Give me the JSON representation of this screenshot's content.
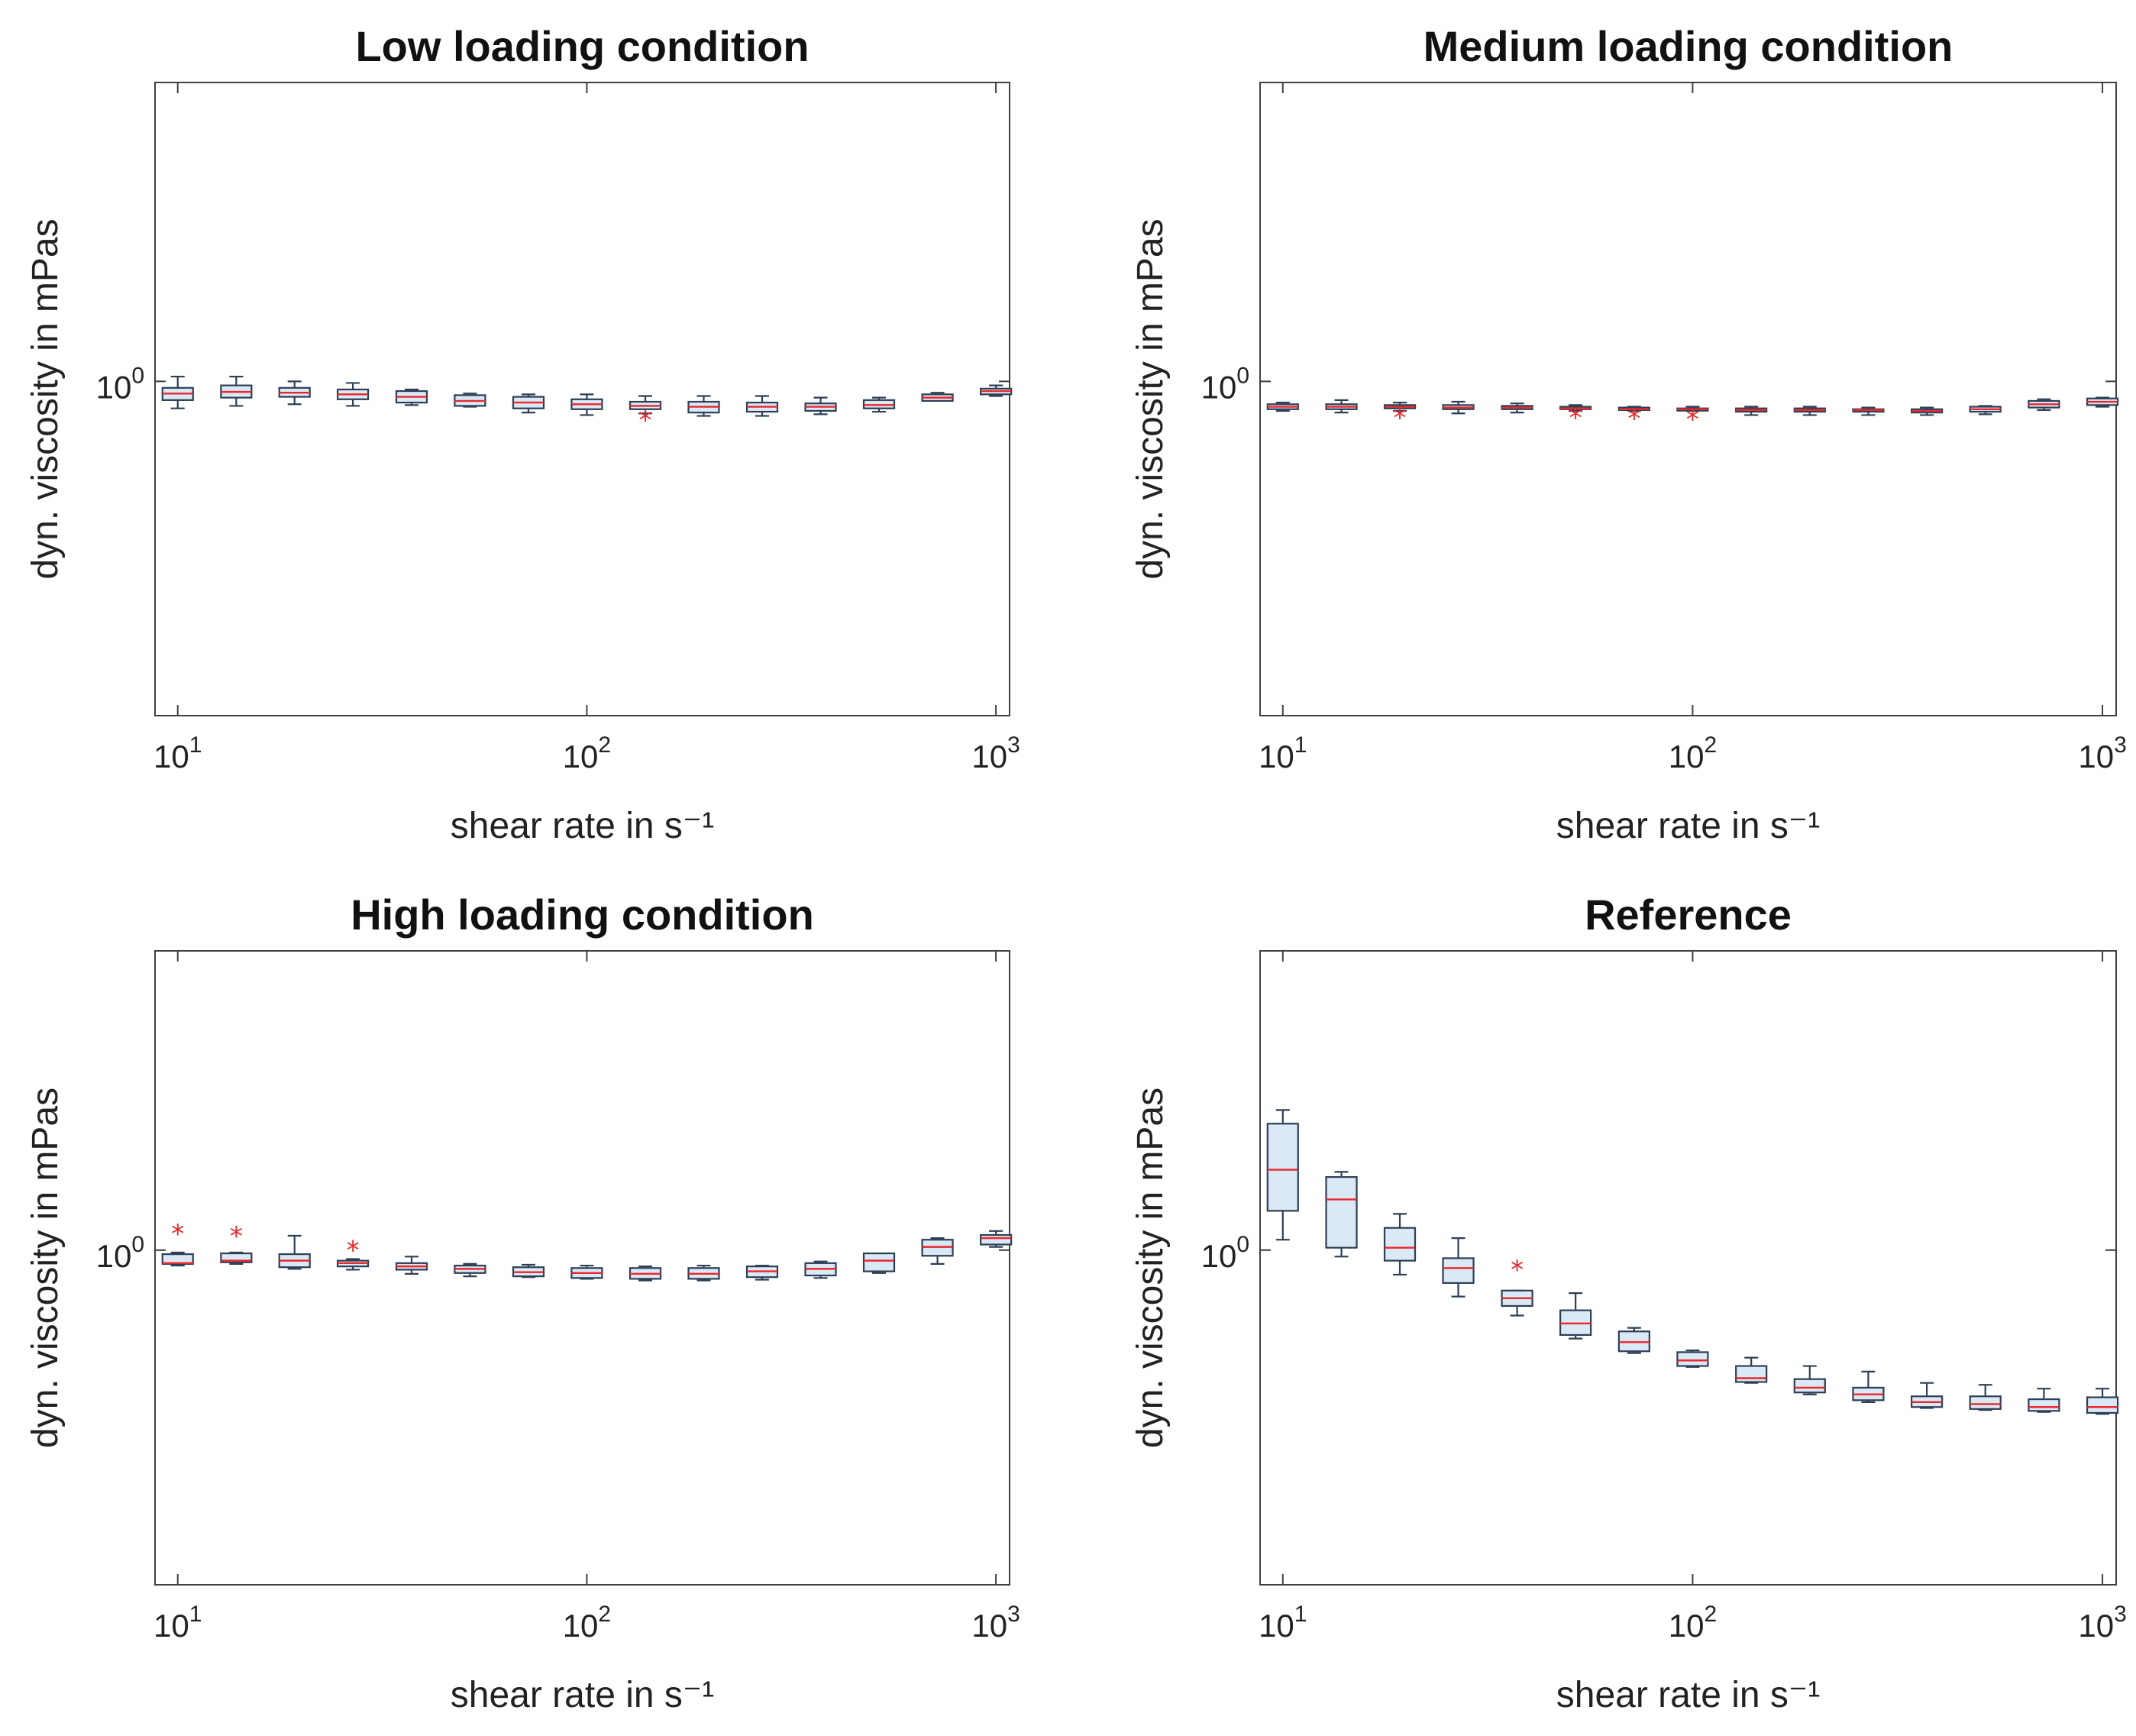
{
  "colors": {
    "box_fill": "#dbe8f5",
    "box_edge": "#2c3f55",
    "median": "#e8282b",
    "outlier": "#e8282b",
    "axis": "#404040"
  },
  "chart_data": [
    {
      "type": "box",
      "title": "Low loading condition",
      "xlabel": "shear rate in s⁻¹",
      "ylabel": "dyn. viscosity in mPas",
      "xscale": "log",
      "yscale": "log",
      "xlim": [
        8.8,
        1080
      ],
      "ylim": [
        0.66,
        1.45
      ],
      "xticks": [
        {
          "base": "10",
          "exp": "1",
          "v": 10
        },
        {
          "base": "10",
          "exp": "2",
          "v": 100
        },
        {
          "base": "10",
          "exp": "3",
          "v": 1000
        }
      ],
      "yticks": [
        {
          "base": "10",
          "exp": "0",
          "v": 1
        }
      ],
      "boxes": [
        {
          "x": 10.0,
          "whisker_low": 0.967,
          "q1": 0.977,
          "median": 0.985,
          "q3": 0.992,
          "whisker_high": 1.006,
          "outliers": []
        },
        {
          "x": 13.9,
          "whisker_low": 0.97,
          "q1": 0.98,
          "median": 0.987,
          "q3": 0.995,
          "whisker_high": 1.006,
          "outliers": []
        },
        {
          "x": 19.3,
          "whisker_low": 0.972,
          "q1": 0.981,
          "median": 0.986,
          "q3": 0.992,
          "whisker_high": 1.0,
          "outliers": []
        },
        {
          "x": 26.8,
          "whisker_low": 0.97,
          "q1": 0.978,
          "median": 0.984,
          "q3": 0.99,
          "whisker_high": 0.998,
          "outliers": []
        },
        {
          "x": 37.3,
          "whisker_low": 0.971,
          "q1": 0.974,
          "median": 0.981,
          "q3": 0.988,
          "whisker_high": 0.99,
          "outliers": []
        },
        {
          "x": 51.8,
          "whisker_low": 0.969,
          "q1": 0.97,
          "median": 0.976,
          "q3": 0.983,
          "whisker_high": 0.985,
          "outliers": []
        },
        {
          "x": 72.0,
          "whisker_low": 0.962,
          "q1": 0.967,
          "median": 0.974,
          "q3": 0.981,
          "whisker_high": 0.984,
          "outliers": []
        },
        {
          "x": 100.0,
          "whisker_low": 0.959,
          "q1": 0.966,
          "median": 0.972,
          "q3": 0.978,
          "whisker_high": 0.984,
          "outliers": []
        },
        {
          "x": 139.0,
          "whisker_low": 0.961,
          "q1": 0.966,
          "median": 0.97,
          "q3": 0.975,
          "whisker_high": 0.982,
          "outliers": [
            0.957
          ]
        },
        {
          "x": 193.1,
          "whisker_low": 0.958,
          "q1": 0.962,
          "median": 0.969,
          "q3": 0.975,
          "whisker_high": 0.982,
          "outliers": []
        },
        {
          "x": 268.3,
          "whisker_low": 0.958,
          "q1": 0.963,
          "median": 0.969,
          "q3": 0.974,
          "whisker_high": 0.982,
          "outliers": []
        },
        {
          "x": 372.8,
          "whisker_low": 0.96,
          "q1": 0.964,
          "median": 0.969,
          "q3": 0.973,
          "whisker_high": 0.98,
          "outliers": []
        },
        {
          "x": 517.9,
          "whisker_low": 0.963,
          "q1": 0.967,
          "median": 0.971,
          "q3": 0.977,
          "whisker_high": 0.98,
          "outliers": []
        },
        {
          "x": 719.7,
          "whisker_low": 0.976,
          "q1": 0.976,
          "median": 0.98,
          "q3": 0.984,
          "whisker_high": 0.986,
          "outliers": []
        },
        {
          "x": 1000.0,
          "whisker_low": 0.982,
          "q1": 0.984,
          "median": 0.988,
          "q3": 0.991,
          "whisker_high": 0.995,
          "outliers": []
        }
      ]
    },
    {
      "type": "box",
      "title": "Medium loading condition",
      "xlabel": "shear rate in s⁻¹",
      "ylabel": "dyn. viscosity in mPas",
      "xscale": "log",
      "yscale": "log",
      "xlim": [
        8.8,
        1080
      ],
      "ylim": [
        0.66,
        1.45
      ],
      "xticks": [
        {
          "base": "10",
          "exp": "1",
          "v": 10
        },
        {
          "base": "10",
          "exp": "2",
          "v": 100
        },
        {
          "base": "10",
          "exp": "3",
          "v": 1000
        }
      ],
      "yticks": [
        {
          "base": "10",
          "exp": "0",
          "v": 1
        }
      ],
      "boxes": [
        {
          "x": 10.0,
          "whisker_low": 0.964,
          "q1": 0.966,
          "median": 0.969,
          "q3": 0.972,
          "whisker_high": 0.974,
          "outliers": []
        },
        {
          "x": 13.9,
          "whisker_low": 0.962,
          "q1": 0.966,
          "median": 0.969,
          "q3": 0.972,
          "whisker_high": 0.977,
          "outliers": []
        },
        {
          "x": 19.3,
          "whisker_low": 0.964,
          "q1": 0.967,
          "median": 0.969,
          "q3": 0.971,
          "whisker_high": 0.974,
          "outliers": [
            0.96
          ]
        },
        {
          "x": 26.8,
          "whisker_low": 0.961,
          "q1": 0.966,
          "median": 0.968,
          "q3": 0.971,
          "whisker_high": 0.975,
          "outliers": []
        },
        {
          "x": 37.3,
          "whisker_low": 0.962,
          "q1": 0.966,
          "median": 0.968,
          "q3": 0.97,
          "whisker_high": 0.973,
          "outliers": []
        },
        {
          "x": 51.8,
          "whisker_low": 0.964,
          "q1": 0.966,
          "median": 0.967,
          "q3": 0.969,
          "whisker_high": 0.971,
          "outliers": [
            0.96
          ]
        },
        {
          "x": 72.0,
          "whisker_low": 0.964,
          "q1": 0.965,
          "median": 0.966,
          "q3": 0.968,
          "whisker_high": 0.969,
          "outliers": [
            0.959
          ]
        },
        {
          "x": 100.0,
          "whisker_low": 0.964,
          "q1": 0.965,
          "median": 0.966,
          "q3": 0.967,
          "whisker_high": 0.969,
          "outliers": [
            0.958
          ]
        },
        {
          "x": 139.0,
          "whisker_low": 0.959,
          "q1": 0.963,
          "median": 0.965,
          "q3": 0.967,
          "whisker_high": 0.969,
          "outliers": []
        },
        {
          "x": 193.1,
          "whisker_low": 0.959,
          "q1": 0.963,
          "median": 0.965,
          "q3": 0.967,
          "whisker_high": 0.969,
          "outliers": []
        },
        {
          "x": 268.3,
          "whisker_low": 0.959,
          "q1": 0.963,
          "median": 0.965,
          "q3": 0.966,
          "whisker_high": 0.968,
          "outliers": []
        },
        {
          "x": 372.8,
          "whisker_low": 0.959,
          "q1": 0.962,
          "median": 0.964,
          "q3": 0.966,
          "whisker_high": 0.968,
          "outliers": []
        },
        {
          "x": 517.9,
          "whisker_low": 0.96,
          "q1": 0.963,
          "median": 0.966,
          "q3": 0.969,
          "whisker_high": 0.97,
          "outliers": []
        },
        {
          "x": 719.7,
          "whisker_low": 0.965,
          "q1": 0.968,
          "median": 0.972,
          "q3": 0.976,
          "whisker_high": 0.978,
          "outliers": []
        },
        {
          "x": 1000.0,
          "whisker_low": 0.969,
          "q1": 0.971,
          "median": 0.975,
          "q3": 0.979,
          "whisker_high": 0.98,
          "outliers": []
        }
      ]
    },
    {
      "type": "box",
      "title": "High loading condition",
      "xlabel": "shear rate in s⁻¹",
      "ylabel": "dyn. viscosity in mPas",
      "xscale": "log",
      "yscale": "log",
      "xlim": [
        8.8,
        1080
      ],
      "ylim": [
        0.66,
        1.45
      ],
      "xticks": [
        {
          "base": "10",
          "exp": "1",
          "v": 10
        },
        {
          "base": "10",
          "exp": "2",
          "v": 100
        },
        {
          "base": "10",
          "exp": "3",
          "v": 1000
        }
      ],
      "yticks": [
        {
          "base": "10",
          "exp": "0",
          "v": 1
        }
      ],
      "boxes": [
        {
          "x": 10.0,
          "whisker_low": 0.981,
          "q1": 0.983,
          "median": 0.984,
          "q3": 0.995,
          "whisker_high": 0.997,
          "outliers": [
            1.025
          ]
        },
        {
          "x": 13.9,
          "whisker_low": 0.983,
          "q1": 0.985,
          "median": 0.987,
          "q3": 0.996,
          "whisker_high": 0.997,
          "outliers": [
            1.022
          ]
        },
        {
          "x": 19.3,
          "whisker_low": 0.977,
          "q1": 0.979,
          "median": 0.987,
          "q3": 0.995,
          "whisker_high": 1.018,
          "outliers": []
        },
        {
          "x": 26.8,
          "whisker_low": 0.976,
          "q1": 0.98,
          "median": 0.984,
          "q3": 0.987,
          "whisker_high": 0.989,
          "outliers": [
            1.004
          ]
        },
        {
          "x": 37.3,
          "whisker_low": 0.971,
          "q1": 0.976,
          "median": 0.98,
          "q3": 0.984,
          "whisker_high": 0.992,
          "outliers": []
        },
        {
          "x": 51.8,
          "whisker_low": 0.968,
          "q1": 0.972,
          "median": 0.977,
          "q3": 0.981,
          "whisker_high": 0.983,
          "outliers": []
        },
        {
          "x": 72.0,
          "whisker_low": 0.967,
          "q1": 0.968,
          "median": 0.973,
          "q3": 0.979,
          "whisker_high": 0.982,
          "outliers": []
        },
        {
          "x": 100.0,
          "whisker_low": 0.965,
          "q1": 0.966,
          "median": 0.972,
          "q3": 0.978,
          "whisker_high": 0.981,
          "outliers": []
        },
        {
          "x": 139.0,
          "whisker_low": 0.963,
          "q1": 0.965,
          "median": 0.971,
          "q3": 0.978,
          "whisker_high": 0.98,
          "outliers": []
        },
        {
          "x": 193.1,
          "whisker_low": 0.963,
          "q1": 0.965,
          "median": 0.971,
          "q3": 0.978,
          "whisker_high": 0.981,
          "outliers": []
        },
        {
          "x": 268.3,
          "whisker_low": 0.964,
          "q1": 0.967,
          "median": 0.974,
          "q3": 0.98,
          "whisker_high": 0.981,
          "outliers": []
        },
        {
          "x": 372.8,
          "whisker_low": 0.966,
          "q1": 0.969,
          "median": 0.977,
          "q3": 0.984,
          "whisker_high": 0.986,
          "outliers": []
        },
        {
          "x": 517.9,
          "whisker_low": 0.972,
          "q1": 0.974,
          "median": 0.987,
          "q3": 0.996,
          "whisker_high": 0.996,
          "outliers": []
        },
        {
          "x": 719.7,
          "whisker_low": 0.983,
          "q1": 0.993,
          "median": 1.004,
          "q3": 1.013,
          "whisker_high": 1.015,
          "outliers": []
        },
        {
          "x": 1000.0,
          "whisker_low": 1.004,
          "q1": 1.007,
          "median": 1.015,
          "q3": 1.019,
          "whisker_high": 1.024,
          "outliers": []
        }
      ]
    },
    {
      "type": "box",
      "title": "Reference",
      "xlabel": "shear rate in s⁻¹",
      "ylabel": "dyn. viscosity in mPas",
      "xscale": "log",
      "yscale": "log",
      "xlim": [
        8.8,
        1080
      ],
      "ylim": [
        0.66,
        1.45
      ],
      "xticks": [
        {
          "base": "10",
          "exp": "1",
          "v": 10
        },
        {
          "base": "10",
          "exp": "2",
          "v": 100
        },
        {
          "base": "10",
          "exp": "3",
          "v": 1000
        }
      ],
      "yticks": [
        {
          "base": "10",
          "exp": "0",
          "v": 1
        }
      ],
      "boxes": [
        {
          "x": 10.0,
          "whisker_low": 1.013,
          "q1": 1.05,
          "median": 1.105,
          "q3": 1.17,
          "whisker_high": 1.19,
          "outliers": []
        },
        {
          "x": 13.9,
          "whisker_low": 0.992,
          "q1": 1.003,
          "median": 1.065,
          "q3": 1.095,
          "whisker_high": 1.102,
          "outliers": []
        },
        {
          "x": 19.3,
          "whisker_low": 0.97,
          "q1": 0.987,
          "median": 1.003,
          "q3": 1.028,
          "whisker_high": 1.046,
          "outliers": []
        },
        {
          "x": 26.8,
          "whisker_low": 0.944,
          "q1": 0.96,
          "median": 0.978,
          "q3": 0.99,
          "whisker_high": 1.015,
          "outliers": []
        },
        {
          "x": 37.3,
          "whisker_low": 0.922,
          "q1": 0.933,
          "median": 0.942,
          "q3": 0.951,
          "whisker_high": 0.951,
          "outliers": [
            0.98
          ]
        },
        {
          "x": 51.8,
          "whisker_low": 0.896,
          "q1": 0.9,
          "median": 0.913,
          "q3": 0.928,
          "whisker_high": 0.948,
          "outliers": []
        },
        {
          "x": 72.0,
          "whisker_low": 0.88,
          "q1": 0.882,
          "median": 0.892,
          "q3": 0.904,
          "whisker_high": 0.908,
          "outliers": []
        },
        {
          "x": 100.0,
          "whisker_low": 0.865,
          "q1": 0.866,
          "median": 0.872,
          "q3": 0.881,
          "whisker_high": 0.883,
          "outliers": []
        },
        {
          "x": 139.0,
          "whisker_low": 0.848,
          "q1": 0.849,
          "median": 0.853,
          "q3": 0.866,
          "whisker_high": 0.875,
          "outliers": []
        },
        {
          "x": 193.1,
          "whisker_low": 0.836,
          "q1": 0.838,
          "median": 0.843,
          "q3": 0.852,
          "whisker_high": 0.866,
          "outliers": []
        },
        {
          "x": 268.3,
          "whisker_low": 0.828,
          "q1": 0.83,
          "median": 0.836,
          "q3": 0.843,
          "whisker_high": 0.86,
          "outliers": []
        },
        {
          "x": 372.8,
          "whisker_low": 0.822,
          "q1": 0.823,
          "median": 0.828,
          "q3": 0.834,
          "whisker_high": 0.848,
          "outliers": []
        },
        {
          "x": 517.9,
          "whisker_low": 0.82,
          "q1": 0.821,
          "median": 0.826,
          "q3": 0.834,
          "whisker_high": 0.846,
          "outliers": []
        },
        {
          "x": 719.7,
          "whisker_low": 0.818,
          "q1": 0.819,
          "median": 0.823,
          "q3": 0.831,
          "whisker_high": 0.842,
          "outliers": []
        },
        {
          "x": 1000.0,
          "whisker_low": 0.816,
          "q1": 0.817,
          "median": 0.823,
          "q3": 0.833,
          "whisker_high": 0.842,
          "outliers": []
        }
      ]
    }
  ]
}
